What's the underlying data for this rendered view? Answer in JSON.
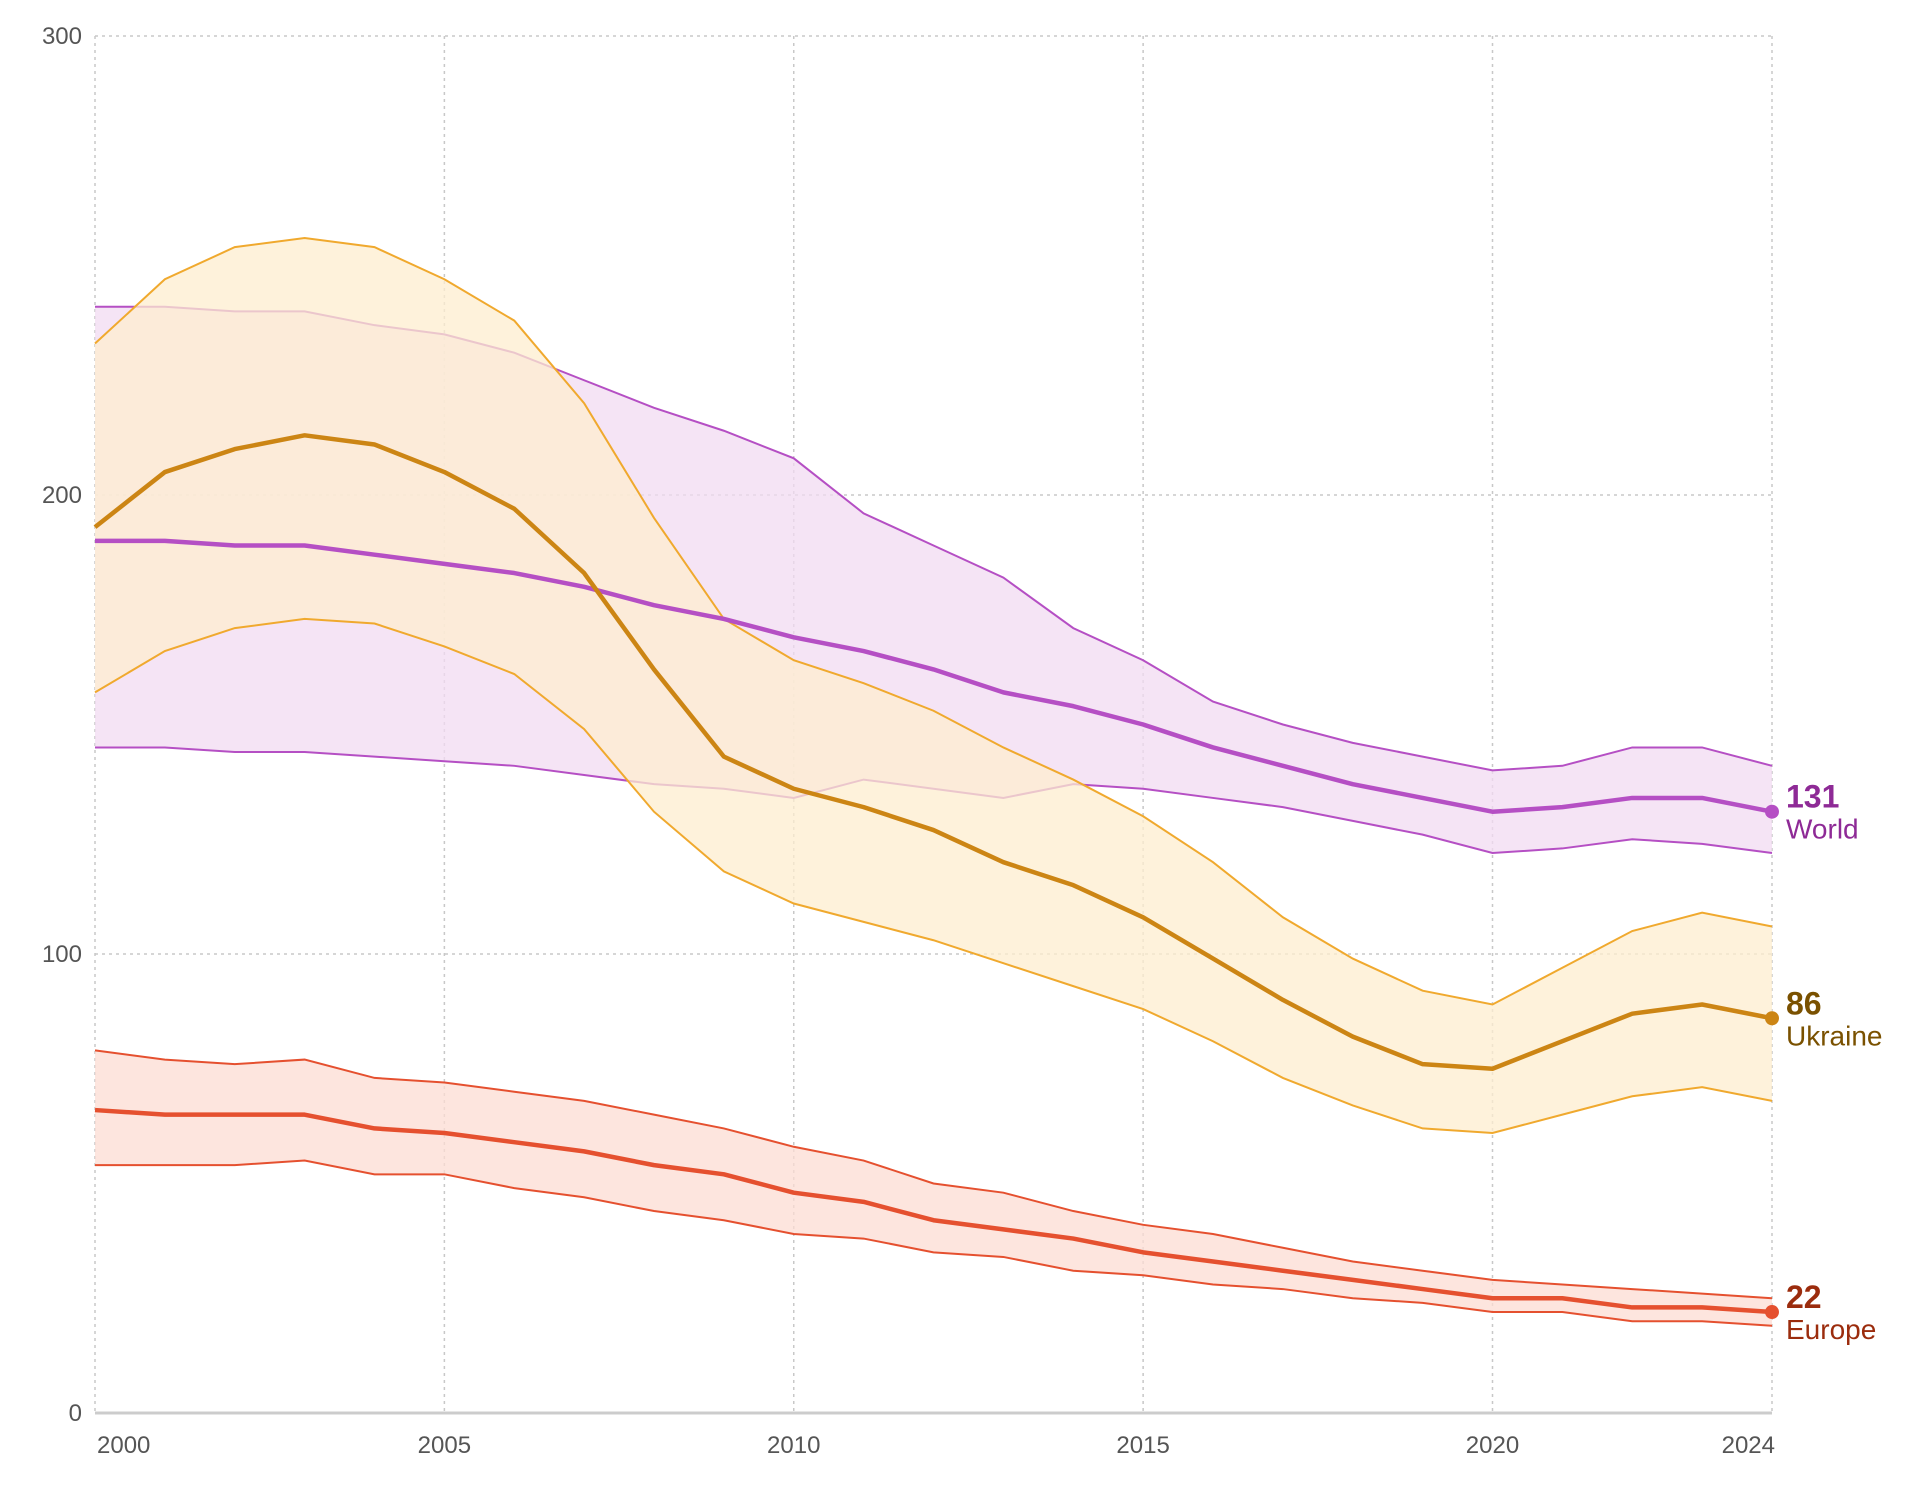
{
  "chart_data": {
    "type": "line",
    "title": "",
    "xlabel": "",
    "ylabel": "",
    "xlim": [
      2000,
      2024
    ],
    "ylim": [
      0,
      300
    ],
    "x_ticks": [
      2000,
      2005,
      2010,
      2015,
      2020,
      2024
    ],
    "x_tick_labels": [
      "2000",
      "2005",
      "2010",
      "2015",
      "2020",
      "2024"
    ],
    "y_ticks": [
      0,
      100,
      200,
      300
    ],
    "y_tick_labels": [
      "0",
      "100",
      "200",
      "300"
    ],
    "grid": true,
    "x": [
      2000,
      2001,
      2002,
      2003,
      2004,
      2005,
      2006,
      2007,
      2008,
      2009,
      2010,
      2011,
      2012,
      2013,
      2014,
      2015,
      2016,
      2017,
      2018,
      2019,
      2020,
      2021,
      2022,
      2023,
      2024
    ],
    "series": [
      {
        "name": "World",
        "end_label": "131",
        "color": "#b54fc4",
        "label_color": "#8e2a96",
        "band_color": "#f1dbf1",
        "values": [
          190,
          190,
          189,
          189,
          187,
          185,
          183,
          180,
          176,
          173,
          169,
          166,
          162,
          157,
          154,
          150,
          145,
          141,
          137,
          134,
          131,
          132,
          134,
          134,
          131
        ],
        "lower": [
          145,
          145,
          144,
          144,
          143,
          142,
          141,
          139,
          137,
          136,
          134,
          138,
          136,
          134,
          137,
          136,
          134,
          132,
          129,
          126,
          122,
          123,
          125,
          124,
          122
        ],
        "upper": [
          241,
          241,
          240,
          240,
          237,
          235,
          231,
          225,
          219,
          214,
          208,
          196,
          189,
          182,
          171,
          164,
          155,
          150,
          146,
          143,
          140,
          141,
          145,
          145,
          141
        ]
      },
      {
        "name": "Ukraine",
        "end_label": "86",
        "color": "#cc8514",
        "label_color": "#7a5100",
        "band_color": "#fdedcf",
        "line_color_band": "#f0a92e",
        "values": [
          193,
          205,
          210,
          213,
          211,
          205,
          197,
          183,
          162,
          143,
          136,
          132,
          127,
          120,
          115,
          108,
          99,
          90,
          82,
          76,
          75,
          81,
          87,
          89,
          86
        ],
        "lower": [
          157,
          166,
          171,
          173,
          172,
          167,
          161,
          149,
          131,
          118,
          111,
          107,
          103,
          98,
          93,
          88,
          81,
          73,
          67,
          62,
          61,
          65,
          69,
          71,
          68
        ],
        "upper": [
          233,
          247,
          254,
          256,
          254,
          247,
          238,
          220,
          195,
          173,
          164,
          159,
          153,
          145,
          138,
          130,
          120,
          108,
          99,
          92,
          89,
          97,
          105,
          109,
          106
        ]
      },
      {
        "name": "Europe",
        "end_label": "22",
        "color": "#e5502f",
        "label_color": "#9b2c0d",
        "band_color": "#fcdcd3",
        "values": [
          66,
          65,
          65,
          65,
          62,
          61,
          59,
          57,
          54,
          52,
          48,
          46,
          42,
          40,
          38,
          35,
          33,
          31,
          29,
          27,
          25,
          25,
          23,
          23,
          22
        ],
        "lower": [
          54,
          54,
          54,
          55,
          52,
          52,
          49,
          47,
          44,
          42,
          39,
          38,
          35,
          34,
          31,
          30,
          28,
          27,
          25,
          24,
          22,
          22,
          20,
          20,
          19
        ],
        "upper": [
          79,
          77,
          76,
          77,
          73,
          72,
          70,
          68,
          65,
          62,
          58,
          55,
          50,
          48,
          44,
          41,
          39,
          36,
          33,
          31,
          29,
          28,
          27,
          26,
          25
        ]
      }
    ]
  }
}
